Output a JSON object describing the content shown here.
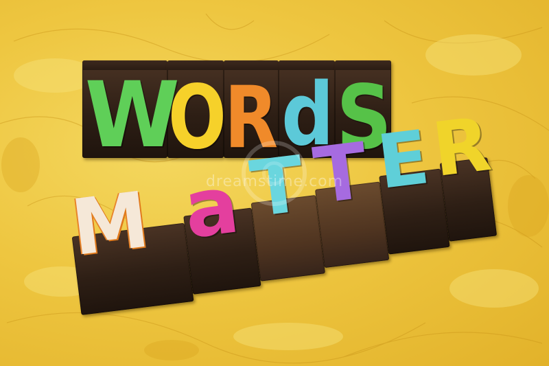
{
  "photo": {
    "background_color": "#eec640",
    "word_1": {
      "text": "WORDS",
      "letters": [
        {
          "char": "W",
          "color": "#5fcf58"
        },
        {
          "char": "O",
          "color": "#f6d12a"
        },
        {
          "char": "R",
          "color": "#f08a2a"
        },
        {
          "char": "d",
          "color": "#5cc9d8"
        },
        {
          "char": "S",
          "color": "#56c248"
        }
      ]
    },
    "word_2": {
      "text": "MATTER",
      "letters": [
        {
          "char": "M",
          "color": "#f5e8d8"
        },
        {
          "char": "a",
          "color": "#e43f9e"
        },
        {
          "char": "T",
          "color": "#6ad6de"
        },
        {
          "char": "T",
          "color": "#a66be0"
        },
        {
          "char": "E",
          "color": "#5fcfd8"
        },
        {
          "char": "R",
          "color": "#f0d42a"
        }
      ]
    },
    "watermark": "dreamstime.com"
  }
}
